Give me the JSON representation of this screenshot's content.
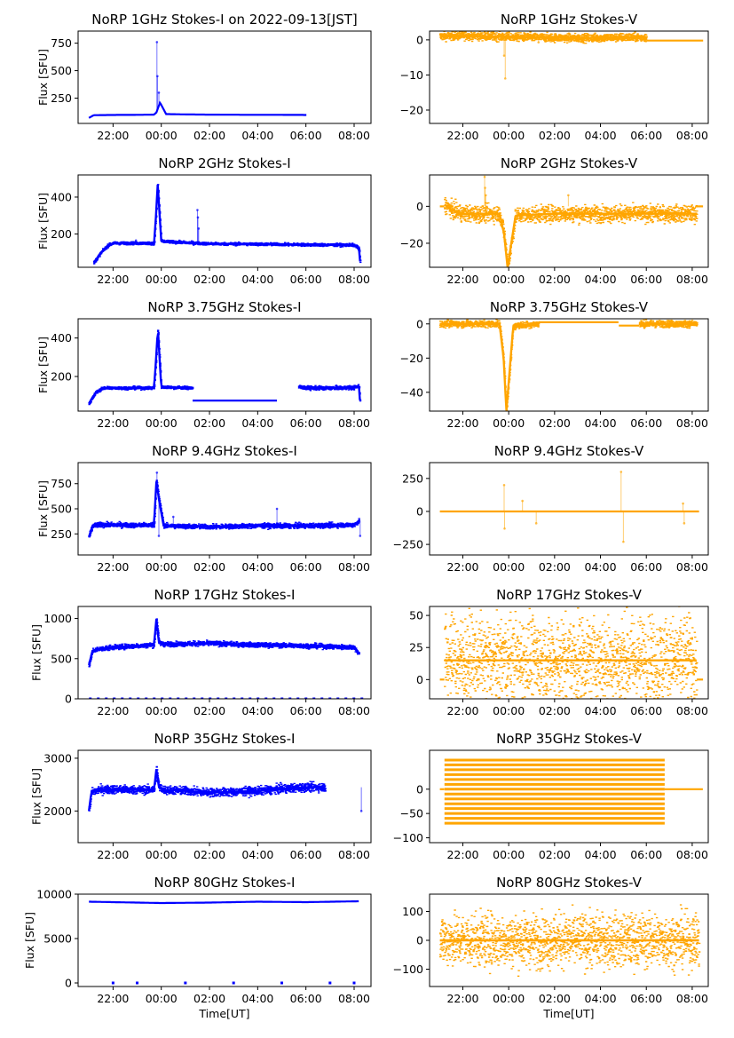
{
  "figure": {
    "xlabel": "Time[UT]",
    "x_ticks": [
      "22:00",
      "00:00",
      "02:00",
      "04:00",
      "06:00",
      "08:00"
    ],
    "x_tick_hours": [
      22,
      24,
      26,
      28,
      30,
      32
    ],
    "x_range_hours": [
      20.55,
      32.7
    ],
    "colors": {
      "stokes_i": "#0000ff",
      "stokes_v": "#ffa500",
      "axes": "#000000"
    }
  },
  "chart_data": [
    {
      "id": "1ghz-i",
      "type": "scatter",
      "title": "NoRP 1GHz Stokes-I on 2022-09-13[JST]",
      "ylabel": "Flux [SFU]",
      "xlabel": "",
      "ylim": [
        20,
        860
      ],
      "yticks": [
        250,
        500,
        750
      ],
      "color": "#0000ff",
      "segments": [
        {
          "x": [
            21.0,
            21.2,
            22,
            23,
            23.7,
            23.8,
            23.95,
            24.2,
            25,
            26,
            27,
            28,
            29,
            30.05
          ],
          "y": [
            70,
            95,
            97,
            98,
            100,
            120,
            210,
            105,
            102,
            100,
            99,
            98,
            98,
            97
          ],
          "noise": 4
        }
      ],
      "spikes": [
        {
          "x": 23.82,
          "y": 760
        },
        {
          "x": 23.84,
          "y": 450
        },
        {
          "x": 23.9,
          "y": 300
        }
      ]
    },
    {
      "id": "1ghz-v",
      "type": "scatter",
      "title": "NoRP 1GHz Stokes-V",
      "ylabel": "",
      "xlabel": "",
      "ylim": [
        -23.8,
        2.5
      ],
      "yticks": [
        0,
        -10,
        -20
      ],
      "color": "#ffa500",
      "segments": [
        {
          "x": [
            21.0,
            22,
            23,
            24,
            25,
            26,
            27,
            28,
            29,
            30.0
          ],
          "y": [
            1.0,
            1.2,
            1.0,
            0.8,
            0.7,
            0.6,
            0.5,
            0.6,
            0.7,
            0.7
          ],
          "noise": 0.6
        },
        {
          "x": [
            30.0,
            32.5
          ],
          "y": [
            -0.2,
            -0.2
          ],
          "noise": 0.05
        }
      ],
      "spikes": [
        {
          "x": 23.8,
          "y": -4.5
        },
        {
          "x": 23.85,
          "y": -11
        },
        {
          "x": 25.3,
          "y": -0.7
        }
      ]
    },
    {
      "id": "2ghz-i",
      "type": "scatter",
      "title": "NoRP 2GHz Stokes-I",
      "ylabel": "Flux [SFU]",
      "xlabel": "",
      "ylim": [
        20,
        520
      ],
      "yticks": [
        200,
        400
      ],
      "color": "#0000ff",
      "segments": [
        {
          "x": [
            21.2,
            21.5,
            21.8,
            22,
            23,
            23.7,
            23.78,
            23.85,
            24.0,
            25.5,
            26,
            28,
            30,
            32.0,
            32.2,
            32.25
          ],
          "y": [
            45,
            100,
            140,
            150,
            150,
            150,
            300,
            470,
            160,
            150,
            147,
            145,
            142,
            140,
            120,
            45
          ],
          "noise": 4
        }
      ],
      "spikes": [
        {
          "x": 25.5,
          "y": 330
        },
        {
          "x": 25.52,
          "y": 290
        },
        {
          "x": 25.55,
          "y": 230
        },
        {
          "x": 22.95,
          "y": 165
        }
      ]
    },
    {
      "id": "2ghz-v",
      "type": "scatter",
      "title": "NoRP 2GHz Stokes-V",
      "ylabel": "",
      "xlabel": "",
      "ylim": [
        -33,
        17
      ],
      "yticks": [
        0,
        -20
      ],
      "color": "#ffa500",
      "segments": [
        {
          "x": [
            21.0,
            21.2
          ],
          "y": [
            0,
            0
          ],
          "noise": 0.1
        },
        {
          "x": [
            21.2,
            21.5,
            22,
            23,
            23.6,
            23.8,
            23.95,
            24.3,
            26,
            28,
            30,
            32.2
          ],
          "y": [
            1,
            -2,
            -4,
            -4,
            -4,
            -15,
            -33,
            -5,
            -4,
            -4,
            -4,
            -4
          ],
          "noise": 2.2
        },
        {
          "x": [
            32.2,
            32.5
          ],
          "y": [
            0,
            0
          ],
          "noise": 0.1
        }
      ],
      "spikes": [
        {
          "x": 22.95,
          "y": 16
        },
        {
          "x": 22.97,
          "y": 10
        },
        {
          "x": 23.0,
          "y": 6
        },
        {
          "x": 26.6,
          "y": 6
        }
      ]
    },
    {
      "id": "375ghz-i",
      "type": "scatter",
      "title": "NoRP 3.75GHz Stokes-I",
      "ylabel": "Flux [SFU]",
      "xlabel": "",
      "ylim": [
        20,
        500
      ],
      "yticks": [
        200,
        400
      ],
      "color": "#0000ff",
      "segments": [
        {
          "x": [
            21.0,
            21.3,
            21.6,
            22,
            23,
            23.7,
            23.78,
            23.86,
            24.0,
            25.3
          ],
          "y": [
            60,
            120,
            140,
            140,
            140,
            140,
            280,
            450,
            145,
            140
          ],
          "noise": 4
        },
        {
          "x": [
            25.3,
            28.8
          ],
          "y": [
            75,
            75
          ],
          "noise": 1
        },
        {
          "x": [
            29.7,
            30,
            31,
            32.0,
            32.2,
            32.25
          ],
          "y": [
            145,
            140,
            140,
            142,
            150,
            60
          ],
          "noise": 5
        }
      ],
      "spikes": []
    },
    {
      "id": "375ghz-v",
      "type": "scatter",
      "title": "NoRP 3.75GHz Stokes-V",
      "ylabel": "",
      "xlabel": "",
      "ylim": [
        -51,
        3
      ],
      "yticks": [
        0,
        -20,
        -40
      ],
      "color": "#ffa500",
      "segments": [
        {
          "x": [
            21.0,
            22,
            23,
            23.6,
            23.78,
            23.9,
            24.2,
            25.3
          ],
          "y": [
            0,
            0,
            0,
            0,
            -20,
            -51,
            -1,
            0
          ],
          "noise": 1.0
        },
        {
          "x": [
            25.3,
            28.8
          ],
          "y": [
            1,
            1
          ],
          "noise": 0.05
        },
        {
          "x": [
            28.8,
            29.7
          ],
          "y": [
            -1,
            -1
          ],
          "noise": 0.05
        },
        {
          "x": [
            29.7,
            32.2
          ],
          "y": [
            0,
            0
          ],
          "noise": 1.0
        }
      ],
      "spikes": []
    },
    {
      "id": "94ghz-i",
      "type": "scatter",
      "title": "NoRP 9.4GHz Stokes-I",
      "ylabel": "Flux [SFU]",
      "xlabel": "",
      "ylim": [
        40,
        960
      ],
      "yticks": [
        250,
        500,
        750
      ],
      "color": "#0000ff",
      "segments": [
        {
          "x": [
            21.0,
            21.15,
            21.4,
            22,
            23,
            23.7,
            23.8,
            23.9,
            24.1,
            26,
            28,
            30,
            32.0,
            32.2
          ],
          "y": [
            220,
            330,
            340,
            340,
            335,
            340,
            780,
            600,
            330,
            320,
            330,
            330,
            340,
            380
          ],
          "noise": 12
        }
      ],
      "spikes": [
        {
          "x": 23.82,
          "y": 860
        },
        {
          "x": 23.9,
          "y": 230
        },
        {
          "x": 24.5,
          "y": 420
        },
        {
          "x": 28.8,
          "y": 500
        },
        {
          "x": 32.25,
          "y": 230
        }
      ]
    },
    {
      "id": "94ghz-v",
      "type": "scatter",
      "title": "NoRP 9.4GHz Stokes-V",
      "ylabel": "",
      "xlabel": "",
      "ylim": [
        -330,
        370
      ],
      "yticks": [
        250,
        0,
        -250
      ],
      "color": "#ffa500",
      "segments": [
        {
          "x": [
            21.0,
            32.3
          ],
          "y": [
            0,
            0
          ],
          "noise": 4
        }
      ],
      "spikes": [
        {
          "x": 23.8,
          "y": 200
        },
        {
          "x": 23.82,
          "y": -130
        },
        {
          "x": 24.6,
          "y": 80
        },
        {
          "x": 25.2,
          "y": -90
        },
        {
          "x": 28.9,
          "y": 300
        },
        {
          "x": 29.0,
          "y": -230
        },
        {
          "x": 31.6,
          "y": 60
        },
        {
          "x": 31.65,
          "y": -90
        }
      ]
    },
    {
      "id": "17ghz-i",
      "type": "scatter",
      "title": "NoRP 17GHz Stokes-I",
      "ylabel": "Flux [SFU]",
      "xlabel": "",
      "ylim": [
        0,
        1150
      ],
      "yticks": [
        0,
        500,
        1000
      ],
      "color": "#0000ff",
      "segments": [
        {
          "x": [
            21.0,
            21.15,
            21.4,
            22,
            23,
            23.7,
            23.8,
            23.9,
            24.1,
            26,
            28,
            30,
            32.0,
            32.2
          ],
          "y": [
            420,
            600,
            620,
            640,
            660,
            670,
            1000,
            700,
            680,
            690,
            670,
            660,
            640,
            560
          ],
          "noise": 15
        },
        {
          "x": [
            21.0,
            32.5
          ],
          "y": [
            0,
            0
          ],
          "noise": 0,
          "dotted": true
        }
      ],
      "spikes": []
    },
    {
      "id": "17ghz-v",
      "type": "scatter",
      "title": "NoRP 17GHz Stokes-V",
      "ylabel": "",
      "xlabel": "",
      "ylim": [
        -15,
        57
      ],
      "yticks": [
        0,
        25,
        50
      ],
      "color": "#ffa500",
      "segments": [
        {
          "x": [
            21.0,
            21.2
          ],
          "y": [
            0,
            0
          ],
          "noise": 0.1
        },
        {
          "x": [
            21.2,
            32.2
          ],
          "y": [
            15,
            15
          ],
          "noise": 17
        },
        {
          "x": [
            32.2,
            32.5
          ],
          "y": [
            0,
            0
          ],
          "noise": 0.1
        }
      ],
      "spikes": []
    },
    {
      "id": "35ghz-i",
      "type": "scatter",
      "title": "NoRP 35GHz Stokes-I",
      "ylabel": "Flux [SFU]",
      "xlabel": "",
      "ylim": [
        1400,
        3150
      ],
      "yticks": [
        2000,
        3000
      ],
      "color": "#0000ff",
      "segments": [
        {
          "x": [
            21.0,
            21.1,
            21.4,
            22,
            23,
            23.7,
            23.8,
            23.9,
            24.1,
            25,
            26,
            27,
            28,
            29,
            30,
            30.8
          ],
          "y": [
            2000,
            2350,
            2400,
            2410,
            2400,
            2400,
            2800,
            2450,
            2400,
            2380,
            2350,
            2360,
            2380,
            2420,
            2450,
            2450
          ],
          "noise": 40
        }
      ],
      "spikes": [
        {
          "x": 32.3,
          "y": 2000
        }
      ]
    },
    {
      "id": "35ghz-v",
      "type": "scatter",
      "title": "NoRP 35GHz Stokes-V",
      "ylabel": "",
      "xlabel": "",
      "ylim": [
        -110,
        80
      ],
      "yticks": [
        0,
        -50,
        -100
      ],
      "color": "#ffa500",
      "segments": [
        {
          "x": [
            21.0,
            21.2
          ],
          "y": [
            0,
            0
          ],
          "noise": 0.1
        },
        {
          "x": [
            30.8,
            32.5
          ],
          "y": [
            0,
            0
          ],
          "noise": 0.1
        }
      ],
      "bands": {
        "x0": 21.2,
        "x1": 30.8,
        "levels": [
          60,
          50,
          40,
          30,
          20,
          10,
          0,
          -10,
          -20,
          -30,
          -40,
          -50,
          -60,
          -70
        ]
      },
      "spikes": []
    },
    {
      "id": "80ghz-i",
      "type": "scatter",
      "title": "NoRP 80GHz Stokes-I",
      "ylabel": "Flux [SFU]",
      "xlabel": "Time[UT]",
      "ylim": [
        -400,
        10000
      ],
      "yticks": [
        0,
        5000,
        10000
      ],
      "color": "#0000ff",
      "segments": [
        {
          "x": [
            21.0,
            22,
            24,
            26,
            28,
            30,
            32.2
          ],
          "y": [
            9150,
            9100,
            9000,
            9050,
            9150,
            9100,
            9200
          ],
          "noise": 60
        }
      ],
      "markers": [
        {
          "x": 22.0,
          "y": 0
        },
        {
          "x": 23.0,
          "y": 0
        },
        {
          "x": 25.0,
          "y": 0
        },
        {
          "x": 27.0,
          "y": 0
        },
        {
          "x": 29.0,
          "y": 0
        },
        {
          "x": 31.0,
          "y": 0
        },
        {
          "x": 32.0,
          "y": 0
        }
      ],
      "spikes": []
    },
    {
      "id": "80ghz-v",
      "type": "scatter",
      "title": "NoRP 80GHz Stokes-V",
      "ylabel": "",
      "xlabel": "Time[UT]",
      "ylim": [
        -160,
        160
      ],
      "yticks": [
        100,
        0,
        -100
      ],
      "color": "#ffa500",
      "segments": [
        {
          "x": [
            21.0,
            32.3
          ],
          "y": [
            0,
            0
          ],
          "noise": 45
        }
      ],
      "spikes": []
    }
  ]
}
